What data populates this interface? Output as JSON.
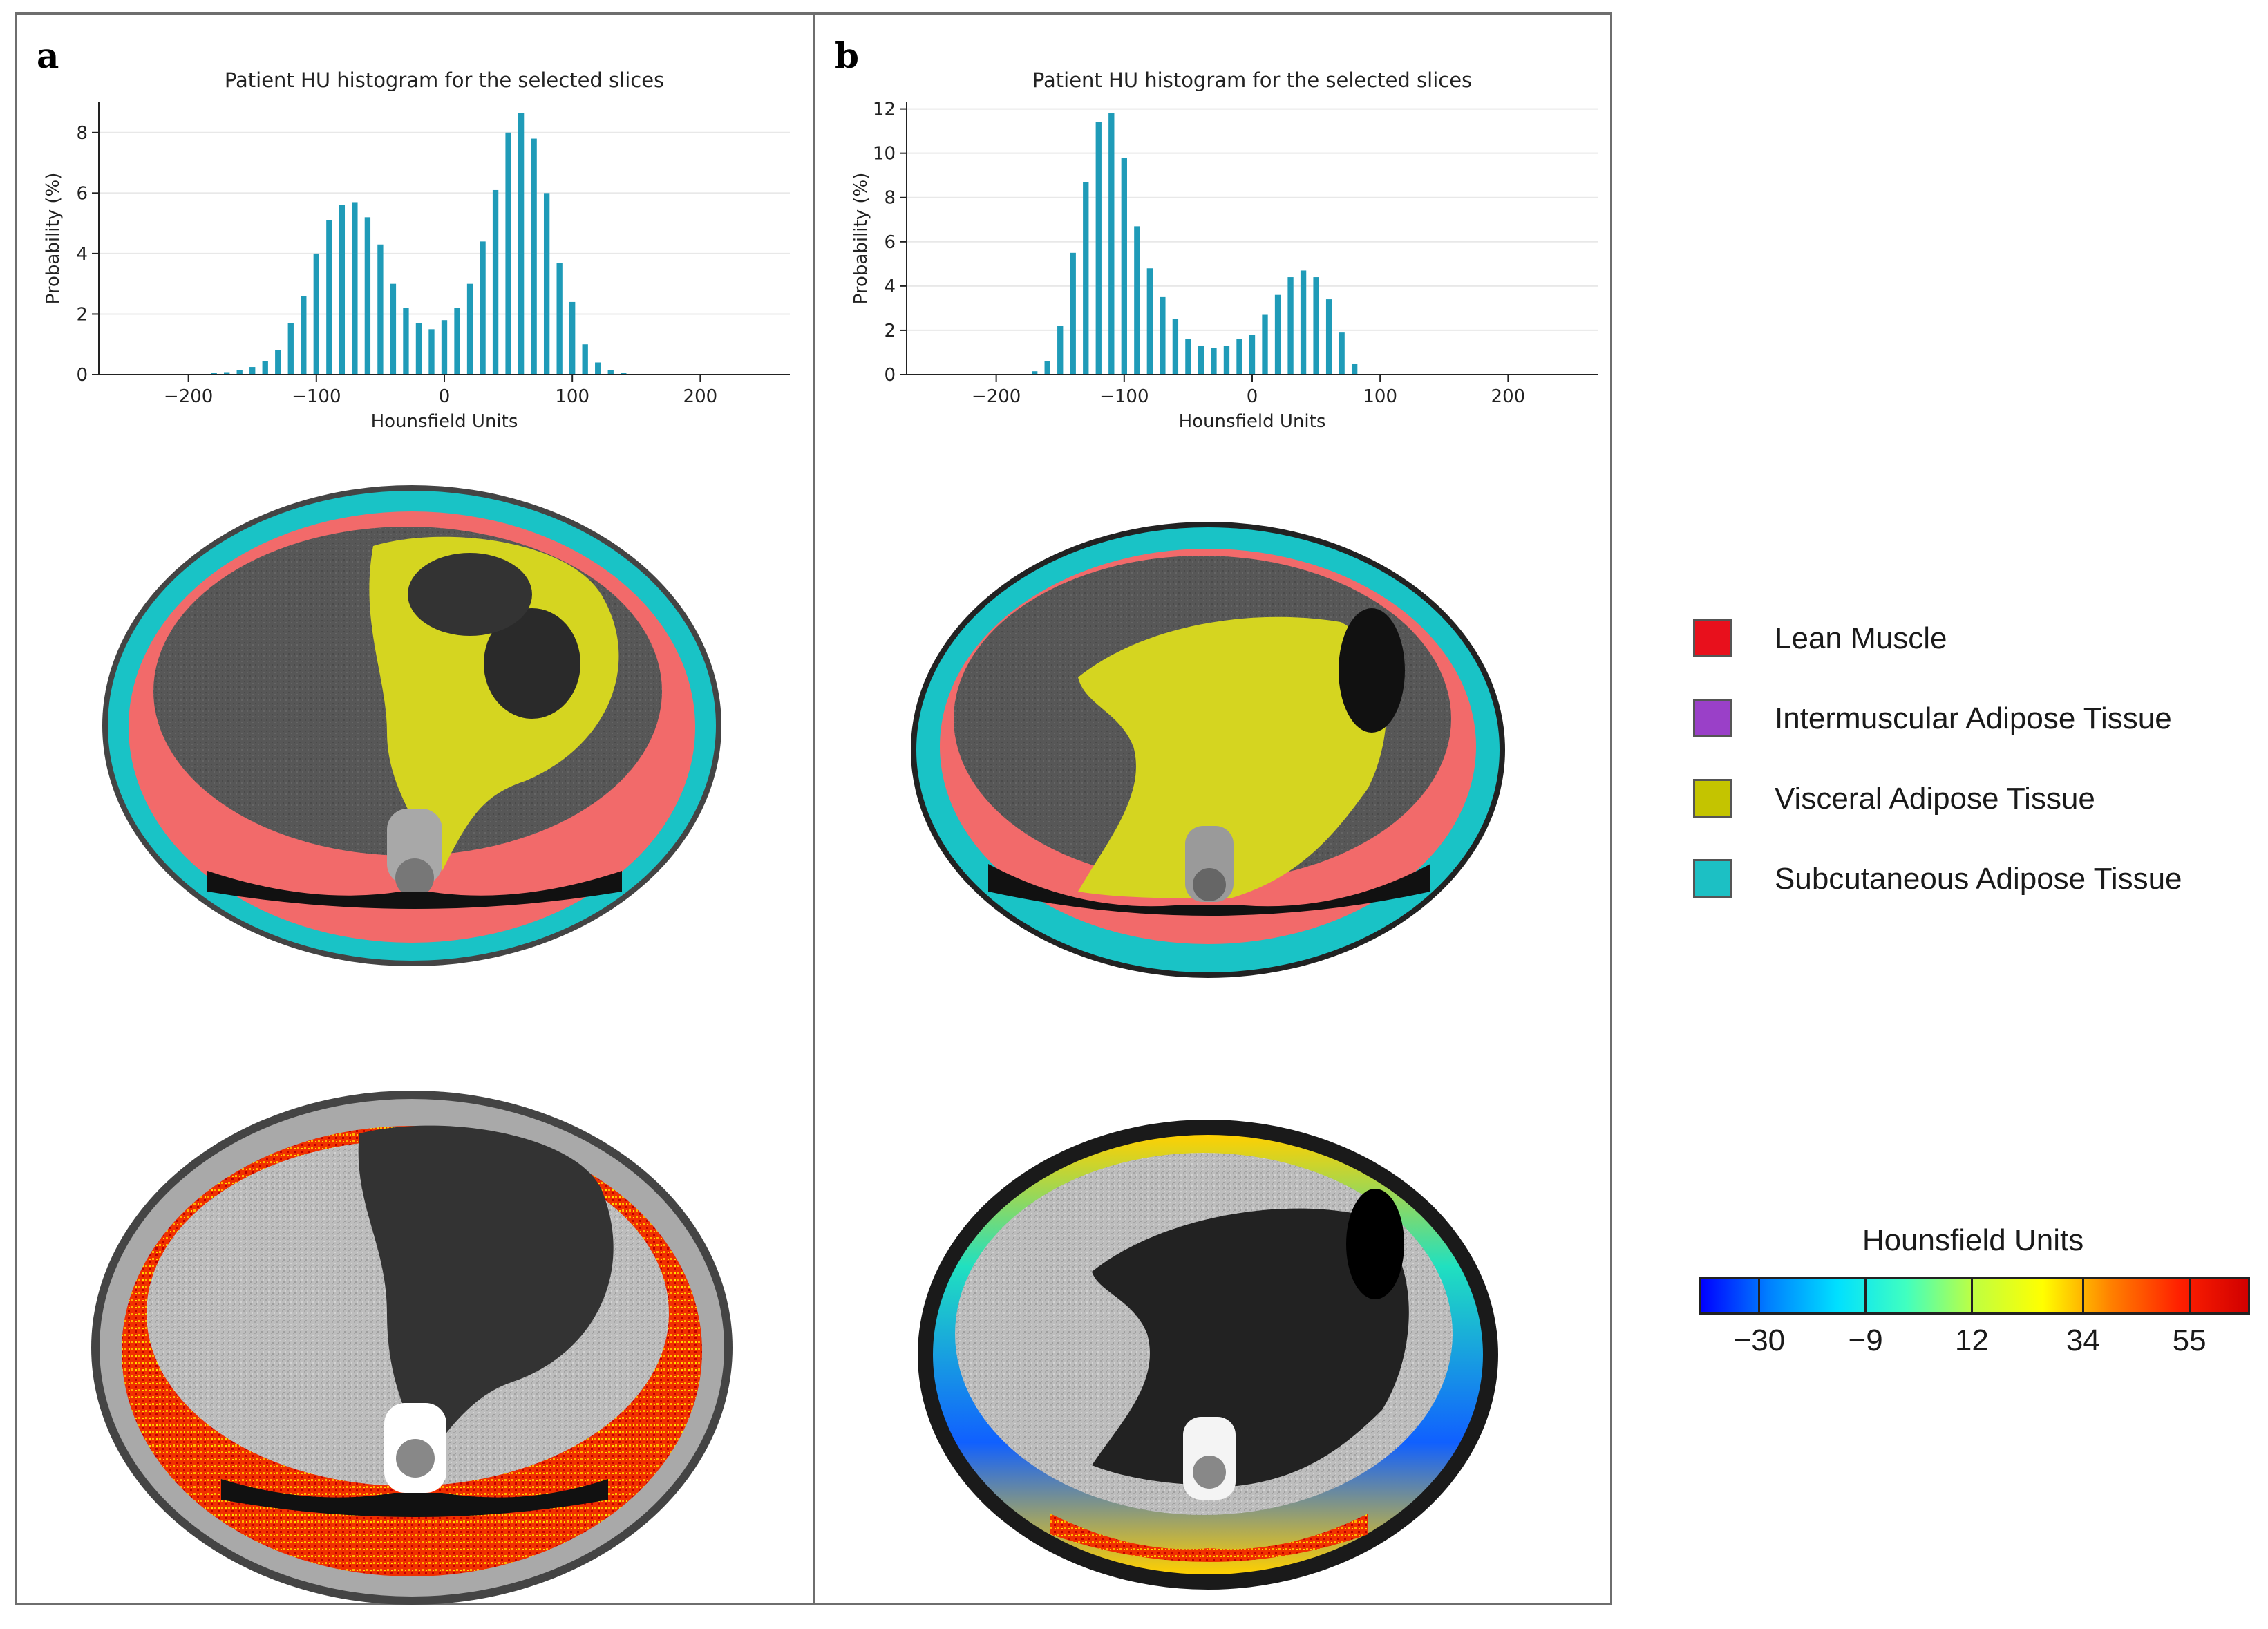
{
  "panels": [
    {
      "letter": "a"
    },
    {
      "letter": "b"
    }
  ],
  "chart_data": [
    {
      "type": "bar",
      "panel": "a",
      "title": "Patient HU histogram for the selected slices",
      "xlabel": "Hounsfield Units",
      "ylabel": "Probability (%)",
      "xlim": [
        -270,
        270
      ],
      "ylim": [
        0,
        9
      ],
      "xticks": [
        -200,
        -100,
        0,
        100,
        200
      ],
      "xtick_labels": [
        "−200",
        "−100",
        "0",
        "100",
        "200"
      ],
      "yticks": [
        0,
        2,
        4,
        6,
        8
      ],
      "ytick_labels": [
        "0",
        "2",
        "4",
        "6",
        "8"
      ],
      "grid": "horizontal",
      "color": "#1f9bb8",
      "x": [
        -190,
        -180,
        -170,
        -160,
        -150,
        -140,
        -130,
        -120,
        -110,
        -100,
        -90,
        -80,
        -70,
        -60,
        -50,
        -40,
        -30,
        -20,
        -10,
        0,
        10,
        20,
        30,
        40,
        50,
        60,
        70,
        80,
        90,
        100,
        110,
        120,
        130,
        140,
        150,
        160
      ],
      "values": [
        0.02,
        0.05,
        0.08,
        0.15,
        0.25,
        0.45,
        0.8,
        1.7,
        2.6,
        4.0,
        5.1,
        5.6,
        5.7,
        5.2,
        4.3,
        3.0,
        2.2,
        1.7,
        1.5,
        1.8,
        2.2,
        3.0,
        4.4,
        6.1,
        8.0,
        8.65,
        7.8,
        6.0,
        3.7,
        2.4,
        1.0,
        0.4,
        0.15,
        0.05,
        0.02,
        0.01
      ]
    },
    {
      "type": "bar",
      "panel": "b",
      "title": "Patient HU histogram for the selected slices",
      "xlabel": "Hounsfield Units",
      "ylabel": "Probability (%)",
      "xlim": [
        -270,
        270
      ],
      "ylim": [
        0,
        12.3
      ],
      "xticks": [
        -200,
        -100,
        0,
        100,
        200
      ],
      "xtick_labels": [
        "−200",
        "−100",
        "0",
        "100",
        "200"
      ],
      "yticks": [
        0,
        2,
        4,
        6,
        8,
        10,
        12
      ],
      "ytick_labels": [
        "0",
        "2",
        "4",
        "6",
        "8",
        "10",
        "12"
      ],
      "grid": "horizontal",
      "color": "#1f9bb8",
      "x": [
        -180,
        -170,
        -160,
        -150,
        -140,
        -130,
        -120,
        -110,
        -100,
        -90,
        -80,
        -70,
        -60,
        -50,
        -40,
        -30,
        -20,
        -10,
        0,
        10,
        20,
        30,
        40,
        50,
        60,
        70,
        80
      ],
      "values": [
        0.03,
        0.15,
        0.6,
        2.2,
        5.5,
        8.7,
        11.4,
        11.8,
        9.8,
        6.7,
        4.8,
        3.5,
        2.5,
        1.6,
        1.3,
        1.2,
        1.3,
        1.6,
        1.8,
        2.7,
        3.6,
        4.4,
        4.7,
        4.4,
        3.4,
        1.9,
        0.5
      ]
    }
  ],
  "legend": {
    "items": [
      {
        "label": "Lean Muscle",
        "color": "#e8101c"
      },
      {
        "label": "Intermuscular Adipose Tissue",
        "color": "#9a40c8"
      },
      {
        "label": "Visceral Adipose Tissue",
        "color": "#c4c400"
      },
      {
        "label": "Subcutaneous Adipose Tissue",
        "color": "#1cc0c4"
      }
    ]
  },
  "colorbar": {
    "title": "Hounsfield Units",
    "ticks": [
      "−30",
      "−9",
      "12",
      "34",
      "55"
    ],
    "tick_values": [
      -30,
      -9,
      12,
      34,
      55
    ],
    "range": [
      -42,
      67
    ],
    "colors": [
      "#0000ff",
      "#0080ff",
      "#00e0ff",
      "#40ffc0",
      "#c0ff40",
      "#ffff00",
      "#ff8000",
      "#ff2000",
      "#d00000"
    ]
  },
  "scan_colors": {
    "muscle": "#f26a6a",
    "subcutaneous": "#19c3c6",
    "visceral": "#d5d520",
    "organ": "#575757",
    "bone": "#a8a8a8",
    "intermuscular": "#9a50d8",
    "tissue_bg": "#b9b9b9",
    "dark": "#111111"
  }
}
